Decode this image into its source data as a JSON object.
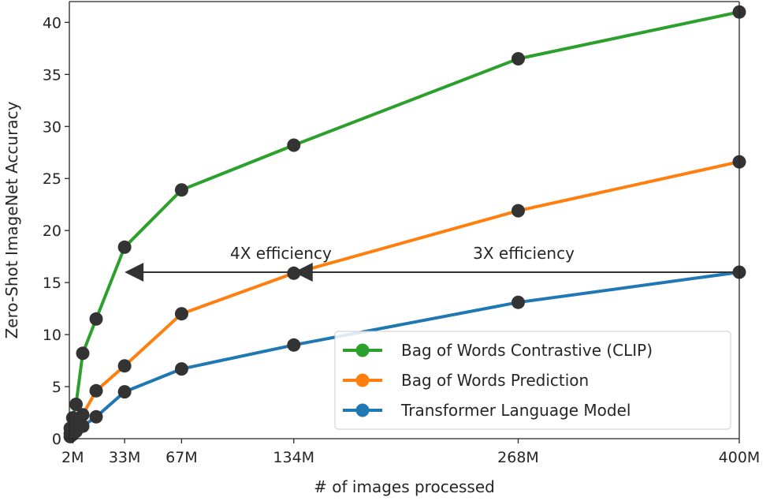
{
  "chart_data": {
    "type": "line",
    "xlabel": "# of images processed",
    "ylabel": "Zero-Shot ImageNet Accuracy",
    "xlim": [
      0,
      400
    ],
    "ylim": [
      0,
      42
    ],
    "x_ticks": [
      {
        "value": 2,
        "label": "2M"
      },
      {
        "value": 33,
        "label": "33M"
      },
      {
        "value": 67,
        "label": "67M"
      },
      {
        "value": 134,
        "label": "134M"
      },
      {
        "value": 268,
        "label": "268M"
      },
      {
        "value": 400,
        "label": "400M"
      }
    ],
    "y_ticks": [
      {
        "value": 0,
        "label": "0"
      },
      {
        "value": 5,
        "label": "5"
      },
      {
        "value": 10,
        "label": "10"
      },
      {
        "value": 15,
        "label": "15"
      },
      {
        "value": 20,
        "label": "20"
      },
      {
        "value": 25,
        "label": "25"
      },
      {
        "value": 30,
        "label": "30"
      },
      {
        "value": 35,
        "label": "35"
      },
      {
        "value": 40,
        "label": "40"
      }
    ],
    "grid": false,
    "legend_position": "bottom-right",
    "series": [
      {
        "name": "Bag of Words Contrastive (CLIP)",
        "color": "#2ca02c",
        "x": [
          0.5,
          2,
          4,
          8,
          16,
          33,
          67,
          134,
          268,
          400
        ],
        "y": [
          1.0,
          2.0,
          3.3,
          8.2,
          11.5,
          18.4,
          23.9,
          28.2,
          36.5,
          41.0
        ]
      },
      {
        "name": "Bag of Words Prediction",
        "color": "#ff7f0e",
        "x": [
          0.5,
          2,
          4,
          8,
          16,
          33,
          67,
          134,
          268,
          400
        ],
        "y": [
          0.5,
          1.0,
          1.5,
          2.3,
          4.6,
          7.0,
          12.0,
          15.9,
          21.9,
          26.6
        ]
      },
      {
        "name": "Transformer Language Model",
        "color": "#1f77b4",
        "x": [
          0.5,
          2,
          4,
          8,
          16,
          33,
          67,
          134,
          268,
          400
        ],
        "y": [
          0.2,
          0.4,
          0.7,
          1.2,
          2.1,
          4.5,
          6.7,
          9.0,
          13.1,
          16.0
        ]
      }
    ],
    "annotations": [
      {
        "text": "4X efficiency",
        "label_x": 96,
        "label_y": 17.3,
        "arrow_from_x": 134,
        "arrow_to_x": 33,
        "arrow_y": 16.0
      },
      {
        "text": "3X efficiency",
        "label_x": 241,
        "label_y": 17.3,
        "arrow_from_x": 400,
        "arrow_to_x": 134,
        "arrow_y": 16.0
      }
    ],
    "marker_color": "#333333"
  }
}
